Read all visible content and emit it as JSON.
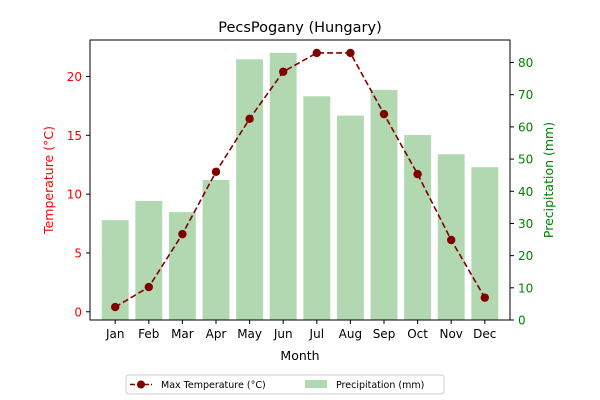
{
  "chart_data": {
    "type": "bar",
    "title": "PecsPogany (Hungary)",
    "xlabel": "Month",
    "ylabel_left": "Temperature (°C)",
    "ylabel_right": "Precipitation (mm)",
    "categories": [
      "Jan",
      "Feb",
      "Mar",
      "Apr",
      "May",
      "Jun",
      "Jul",
      "Aug",
      "Sep",
      "Oct",
      "Nov",
      "Dec"
    ],
    "y_left_lim": [
      -0.7,
      23.1
    ],
    "y_left_ticks": [
      0,
      5,
      10,
      15,
      20
    ],
    "y_right_lim": [
      0,
      87
    ],
    "y_right_ticks": [
      0,
      10,
      20,
      30,
      40,
      50,
      60,
      70,
      80
    ],
    "series": [
      {
        "name": "Max Temperature (°C)",
        "kind": "line",
        "axis": "left",
        "color": "#800000",
        "values": [
          0.4,
          2.1,
          6.6,
          11.9,
          16.4,
          20.4,
          22.0,
          22.0,
          16.8,
          11.7,
          6.1,
          1.2
        ]
      },
      {
        "name": "Precipitation (mm)",
        "kind": "bar",
        "axis": "right",
        "color": "#b2d8b2",
        "values": [
          31,
          37,
          33.5,
          43.5,
          81,
          83,
          69.5,
          63.5,
          71.5,
          57.5,
          51.5,
          47.5
        ]
      }
    ],
    "left_axis_color": "#ff0000",
    "right_axis_color": "#008000",
    "legend": "bottom-center",
    "grid": false
  }
}
